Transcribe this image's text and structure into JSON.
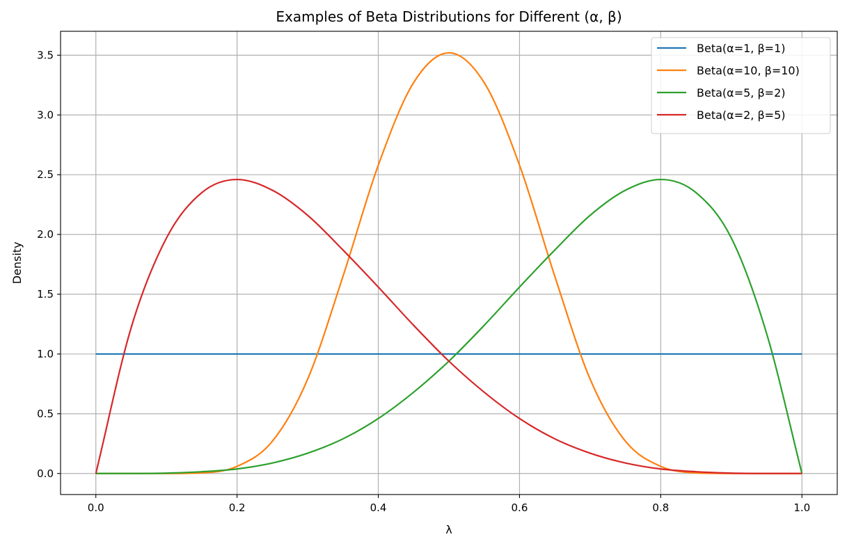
{
  "chart_data": {
    "type": "line",
    "title": "Examples of Beta Distributions for Different (α, β)",
    "xlabel": "λ",
    "ylabel": "Density",
    "xlim": [
      -0.05,
      1.05
    ],
    "ylim": [
      -0.176,
      3.7
    ],
    "xticks": [
      0.0,
      0.2,
      0.4,
      0.6,
      0.8,
      1.0
    ],
    "xtick_labels": [
      "0.0",
      "0.2",
      "0.4",
      "0.6",
      "0.8",
      "1.0"
    ],
    "yticks": [
      0.0,
      0.5,
      1.0,
      1.5,
      2.0,
      2.5,
      3.0,
      3.5
    ],
    "ytick_labels": [
      "0.0",
      "0.5",
      "1.0",
      "1.5",
      "2.0",
      "2.5",
      "3.0",
      "3.5"
    ],
    "grid": true,
    "legend_position": "top-right",
    "series": [
      {
        "name": "Beta(α=1, β=1)",
        "color": "#1f77b4",
        "x": [
          0.0,
          0.05,
          0.1,
          0.15,
          0.2,
          0.25,
          0.3,
          0.35,
          0.4,
          0.45,
          0.5,
          0.55,
          0.6,
          0.65,
          0.7,
          0.75,
          0.8,
          0.85,
          0.9,
          0.95,
          1.0
        ],
        "y": [
          1.0,
          1.0,
          1.0,
          1.0,
          1.0,
          1.0,
          1.0,
          1.0,
          1.0,
          1.0,
          1.0,
          1.0,
          1.0,
          1.0,
          1.0,
          1.0,
          1.0,
          1.0,
          1.0,
          1.0,
          1.0
        ]
      },
      {
        "name": "Beta(α=10, β=10)",
        "color": "#ff7f0e",
        "x": [
          0.0,
          0.05,
          0.1,
          0.15,
          0.2,
          0.25,
          0.3,
          0.35,
          0.4,
          0.45,
          0.5,
          0.55,
          0.6,
          0.65,
          0.7,
          0.75,
          0.8,
          0.85,
          0.9,
          0.95,
          1.0
        ],
        "y": [
          0.0,
          0.0,
          0.0,
          0.005,
          0.06,
          0.27,
          0.79,
          1.65,
          2.58,
          3.27,
          3.52,
          3.27,
          2.58,
          1.65,
          0.79,
          0.27,
          0.06,
          0.005,
          0.0,
          0.0,
          0.0
        ]
      },
      {
        "name": "Beta(α=5, β=2)",
        "color": "#2ca02c",
        "x": [
          0.0,
          0.05,
          0.1,
          0.15,
          0.2,
          0.25,
          0.3,
          0.35,
          0.4,
          0.45,
          0.5,
          0.55,
          0.6,
          0.65,
          0.7,
          0.75,
          0.8,
          0.85,
          0.9,
          0.95,
          1.0
        ],
        "y": [
          0.0,
          0.0002,
          0.003,
          0.015,
          0.038,
          0.088,
          0.17,
          0.29,
          0.46,
          0.68,
          0.94,
          1.24,
          1.56,
          1.87,
          2.16,
          2.37,
          2.46,
          2.35,
          1.97,
          1.17,
          0.0
        ]
      },
      {
        "name": "Beta(α=2, β=5)",
        "color": "#d62728",
        "x": [
          0.0,
          0.05,
          0.1,
          0.15,
          0.2,
          0.25,
          0.3,
          0.35,
          0.4,
          0.45,
          0.5,
          0.55,
          0.6,
          0.65,
          0.7,
          0.75,
          0.8,
          0.85,
          0.9,
          0.95,
          1.0
        ],
        "y": [
          0.0,
          1.22,
          1.97,
          2.35,
          2.46,
          2.37,
          2.16,
          1.87,
          1.56,
          1.24,
          0.94,
          0.68,
          0.46,
          0.29,
          0.17,
          0.088,
          0.038,
          0.015,
          0.003,
          0.0002,
          0.0
        ]
      }
    ]
  }
}
